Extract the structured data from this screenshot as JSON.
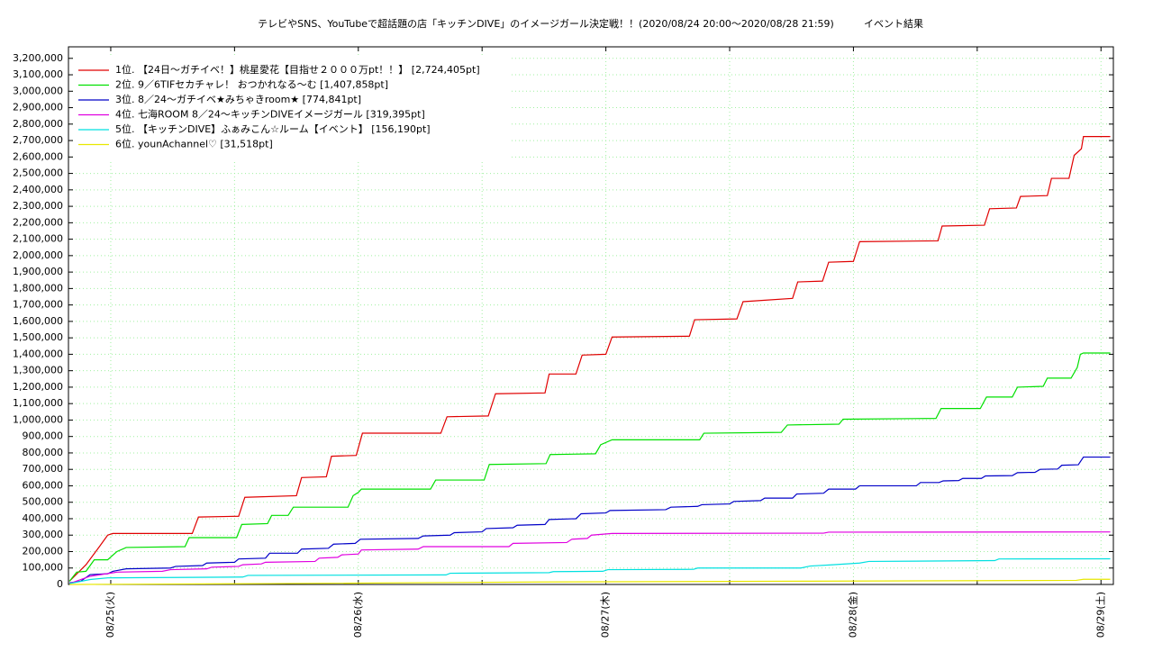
{
  "chart_data": {
    "type": "line",
    "title": "テレビやSNS、YouTubeで超話題の店「キッチンDIVE」のイメージガール決定戦！！(2020/08/24 20:00〜2020/08/28 21:59)",
    "subtitle": "イベント結果",
    "grid": true,
    "legend": "upper-left",
    "xlim": [
      -4.1,
      97.2
    ],
    "ylim": [
      0,
      3270000
    ],
    "xticks": [
      {
        "value": 0,
        "label": "08/25(火)"
      },
      {
        "value": 12,
        "label": null
      },
      {
        "value": 24,
        "label": "08/26(水)"
      },
      {
        "value": 36,
        "label": null
      },
      {
        "value": 48,
        "label": "08/27(木)"
      },
      {
        "value": 60,
        "label": null
      },
      {
        "value": 72,
        "label": "08/28(金)"
      },
      {
        "value": 84,
        "label": null
      },
      {
        "value": 96,
        "label": "08/29(土)"
      }
    ],
    "yticks": [
      0,
      {
        "value": 100000,
        "label": "100,000"
      },
      {
        "value": 200000,
        "label": "200,000"
      },
      {
        "value": 300000,
        "label": "300,000"
      },
      {
        "value": 400000,
        "label": "400,000"
      },
      {
        "value": 500000,
        "label": "500,000"
      },
      {
        "value": 600000,
        "label": "600,000"
      },
      {
        "value": 700000,
        "label": "700,000"
      },
      {
        "value": 800000,
        "label": "800,000"
      },
      {
        "value": 900000,
        "label": "900,000"
      },
      {
        "value": 1000000,
        "label": "1,000,000"
      },
      {
        "value": 1100000,
        "label": "1,100,000"
      },
      {
        "value": 1200000,
        "label": "1,200,000"
      },
      {
        "value": 1300000,
        "label": "1,300,000"
      },
      {
        "value": 1400000,
        "label": "1,400,000"
      },
      {
        "value": 1500000,
        "label": "1,500,000"
      },
      {
        "value": 1600000,
        "label": "1,600,000"
      },
      {
        "value": 1700000,
        "label": "1,700,000"
      },
      {
        "value": 1800000,
        "label": "1,800,000"
      },
      {
        "value": 1900000,
        "label": "1,900,000"
      },
      {
        "value": 2000000,
        "label": "2,000,000"
      },
      {
        "value": 2100000,
        "label": "2,100,000"
      },
      {
        "value": 2200000,
        "label": "2,200,000"
      },
      {
        "value": 2300000,
        "label": "2,300,000"
      },
      {
        "value": 2400000,
        "label": "2,400,000"
      },
      {
        "value": 2500000,
        "label": "2,500,000"
      },
      {
        "value": 2600000,
        "label": "2,600,000"
      },
      {
        "value": 2700000,
        "label": "2,700,000"
      },
      {
        "value": 2800000,
        "label": "2,800,000"
      },
      {
        "value": 2900000,
        "label": "2,900,000"
      },
      {
        "value": 3000000,
        "label": "3,000,000"
      },
      {
        "value": 3100000,
        "label": "3,100,000"
      },
      {
        "value": 3200000,
        "label": "3,200,000"
      }
    ],
    "series": [
      {
        "name": "1位. 【24日〜ガチイベ！】桃星愛花【目指せ２０００万pt！！】 [2,724,405pt]",
        "color": "#e00000",
        "x": [
          -4,
          -2.4,
          -1.1,
          -0.3,
          0.2,
          7.9,
          8.5,
          12.4,
          13.0,
          18.0,
          18.5,
          20.9,
          21.4,
          23.8,
          24.4,
          32.0,
          32.6,
          36.6,
          37.3,
          42.1,
          42.5,
          45.1,
          45.7,
          48.0,
          48.6,
          56.1,
          56.6,
          60.7,
          61.3,
          66.1,
          66.6,
          69.0,
          69.6,
          72.0,
          72.6,
          80.2,
          80.6,
          84.7,
          85.2,
          87.8,
          88.2,
          90.8,
          91.2,
          92.9,
          93.4,
          94.1,
          94.3,
          96.9
        ],
        "values": [
          20000,
          120000,
          230000,
          300000,
          310000,
          310000,
          410000,
          415000,
          530000,
          540000,
          650000,
          655000,
          780000,
          785000,
          920000,
          920000,
          1020000,
          1025000,
          1160000,
          1165000,
          1280000,
          1280000,
          1395000,
          1400000,
          1505000,
          1510000,
          1610000,
          1615000,
          1720000,
          1740000,
          1840000,
          1845000,
          1960000,
          1965000,
          2085000,
          2090000,
          2180000,
          2185000,
          2285000,
          2290000,
          2360000,
          2365000,
          2470000,
          2470000,
          2610000,
          2650000,
          2724405,
          2724405
        ]
      },
      {
        "name": "2位. 9／6TIFセカチャレ！ おつかれなる〜む [1,407,858pt]",
        "color": "#00e000",
        "x": [
          -4,
          -3.3,
          -2.4,
          -1.6,
          -0.3,
          0.6,
          1.5,
          7.2,
          7.6,
          12.2,
          12.7,
          15.2,
          15.6,
          17.2,
          17.7,
          23.0,
          23.5,
          24.0,
          24.3,
          31.0,
          31.5,
          36.2,
          36.7,
          42.2,
          42.6,
          47.0,
          47.5,
          48.6,
          57.1,
          57.5,
          65.0,
          65.6,
          70.6,
          71.0,
          80.0,
          80.5,
          84.3,
          84.9,
          87.4,
          87.9,
          90.4,
          90.8,
          93.1,
          93.7,
          94.0,
          94.3,
          96.9
        ],
        "values": [
          20000,
          75000,
          80000,
          150000,
          150000,
          200000,
          225000,
          230000,
          285000,
          285000,
          365000,
          370000,
          420000,
          420000,
          470000,
          470000,
          540000,
          560000,
          580000,
          580000,
          635000,
          635000,
          730000,
          735000,
          790000,
          795000,
          850000,
          880000,
          880000,
          920000,
          925000,
          970000,
          975000,
          1005000,
          1010000,
          1070000,
          1070000,
          1140000,
          1140000,
          1200000,
          1205000,
          1255000,
          1255000,
          1320000,
          1400000,
          1407858,
          1407858
        ]
      },
      {
        "name": "3位. 8／24〜ガチイベ★みちゃきroom★ [774,841pt]",
        "color": "#0000c8",
        "x": [
          -4,
          -2.9,
          -2.0,
          -0.3,
          0.2,
          1.5,
          5.8,
          6.3,
          8.9,
          9.3,
          12.0,
          12.4,
          15.0,
          15.4,
          18.1,
          18.5,
          21.1,
          21.6,
          23.7,
          24.2,
          29.8,
          30.3,
          32.9,
          33.3,
          36.0,
          36.4,
          39.0,
          39.4,
          42.1,
          42.5,
          45.1,
          45.6,
          48.0,
          48.4,
          53.8,
          54.3,
          56.9,
          57.3,
          60.0,
          60.4,
          63.0,
          63.4,
          66.1,
          66.5,
          69.1,
          69.6,
          72.2,
          72.6,
          78.1,
          78.5,
          80.3,
          80.7,
          82.2,
          82.6,
          84.4,
          84.8,
          87.4,
          87.9,
          89.6,
          90.1,
          91.8,
          92.2,
          93.8,
          94.3,
          96.9
        ],
        "values": [
          10000,
          20000,
          60000,
          65000,
          80000,
          95000,
          100000,
          110000,
          115000,
          130000,
          135000,
          155000,
          160000,
          190000,
          190000,
          215000,
          220000,
          245000,
          250000,
          275000,
          280000,
          295000,
          300000,
          315000,
          320000,
          340000,
          345000,
          360000,
          365000,
          395000,
          400000,
          430000,
          435000,
          450000,
          455000,
          470000,
          475000,
          485000,
          490000,
          505000,
          510000,
          525000,
          525000,
          550000,
          555000,
          580000,
          580000,
          600000,
          600000,
          620000,
          620000,
          630000,
          632000,
          645000,
          645000,
          660000,
          662000,
          680000,
          682000,
          700000,
          702000,
          725000,
          728000,
          774841,
          774841
        ]
      },
      {
        "name": "4位. 七海ROOM 8／24〜キッチンDIVEイメージガール [319,395pt]",
        "color": "#e000e0",
        "x": [
          -4,
          -2,
          0.6,
          5.0,
          5.8,
          9.3,
          9.8,
          12.4,
          12.8,
          14.6,
          15.0,
          19.8,
          20.2,
          22.0,
          22.4,
          24.0,
          24.3,
          29.8,
          30.3,
          38.6,
          39.0,
          44.2,
          44.7,
          46.2,
          46.6,
          48.6,
          69.1,
          69.6,
          96.9
        ],
        "values": [
          5000,
          50000,
          75000,
          80000,
          90000,
          95000,
          105000,
          110000,
          120000,
          125000,
          135000,
          140000,
          160000,
          165000,
          180000,
          185000,
          210000,
          215000,
          230000,
          230000,
          250000,
          255000,
          275000,
          280000,
          300000,
          310000,
          312000,
          318000,
          319395
        ]
      },
      {
        "name": "5位. 【キッチンDIVE】ふぁみこん☆ルーム【イベント】 [156,190pt]",
        "color": "#00e0e0",
        "x": [
          -4,
          -2,
          -0.3,
          12.8,
          13.3,
          32.5,
          32.9,
          42.5,
          42.9,
          47.7,
          48.2,
          56.5,
          56.9,
          66.9,
          67.8,
          70.0,
          72.6,
          73.5,
          85.7,
          86.1,
          96.9
        ],
        "values": [
          5000,
          30000,
          40000,
          45000,
          55000,
          58000,
          68000,
          72000,
          78000,
          80000,
          90000,
          92000,
          100000,
          100000,
          112000,
          120000,
          130000,
          140000,
          145000,
          155000,
          156190
        ]
      },
      {
        "name": "6位. younAchannel♡ [31,518pt]",
        "color": "#e8e800",
        "x": [
          -4,
          15.4,
          41.6,
          67.8,
          93.6,
          94.3,
          96.9
        ],
        "values": [
          0,
          5000,
          15000,
          20000,
          25000,
          31518,
          31518
        ]
      }
    ]
  }
}
